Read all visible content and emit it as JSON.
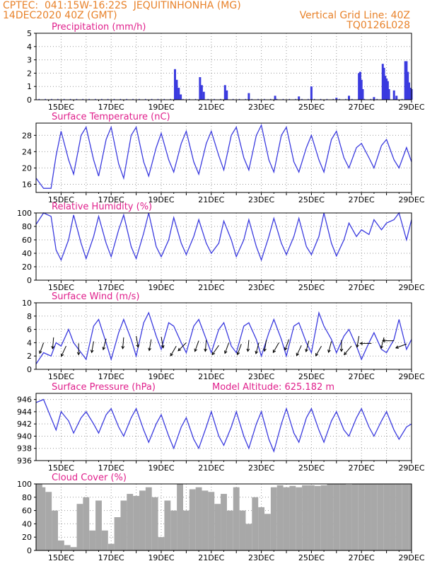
{
  "header": {
    "left_line1": "CPTEC:  041:15W-16:22S  JEQUITINHONHA (MG)",
    "left_line2": "14DEC2020 40Z (GMT)",
    "right_line1": "Vertical Grid Line: 40Z",
    "right_line2": "TQ0126L028"
  },
  "model_altitude": "Model Altitude: 625.182 m",
  "date_ticks": [
    "15DEC",
    "17DEC",
    "19DEC",
    "21DEC",
    "23DEC",
    "25DEC",
    "27DEC",
    "29DEC"
  ],
  "colors": {
    "series": "#3b3bdf",
    "title": "#e0208c",
    "cloud": "#a8a8a8",
    "header": "#e8822a"
  },
  "chart_data": [
    {
      "id": "precip",
      "type": "bar",
      "title": "Precipitation (mm/h)",
      "x_range_days": [
        14.0,
        29.0
      ],
      "ylim": [
        0,
        5
      ],
      "yticks": [
        "0",
        "1",
        "2",
        "3",
        "4",
        "5"
      ],
      "bars": [
        [
          19.55,
          2.3
        ],
        [
          19.62,
          1.5
        ],
        [
          19.7,
          0.9
        ],
        [
          19.78,
          0.4
        ],
        [
          20.55,
          1.7
        ],
        [
          20.62,
          1.1
        ],
        [
          20.7,
          0.6
        ],
        [
          21.55,
          1.1
        ],
        [
          21.62,
          0.7
        ],
        [
          22.5,
          0.5
        ],
        [
          23.55,
          0.3
        ],
        [
          24.5,
          0.25
        ],
        [
          25.0,
          1.0
        ],
        [
          26.0,
          0.15
        ],
        [
          26.5,
          0.3
        ],
        [
          26.9,
          2.0
        ],
        [
          26.95,
          2.1
        ],
        [
          27.0,
          1.5
        ],
        [
          27.05,
          0.8
        ],
        [
          27.5,
          0.2
        ],
        [
          27.85,
          2.7
        ],
        [
          27.9,
          2.4
        ],
        [
          27.95,
          1.8
        ],
        [
          28.0,
          1.6
        ],
        [
          28.05,
          1.4
        ],
        [
          28.1,
          0.8
        ],
        [
          28.3,
          0.7
        ],
        [
          28.4,
          0.3
        ],
        [
          28.75,
          2.9
        ],
        [
          28.8,
          2.9
        ],
        [
          28.85,
          2.1
        ],
        [
          28.9,
          1.3
        ],
        [
          28.95,
          0.9
        ],
        [
          29.0,
          0.8
        ]
      ]
    },
    {
      "id": "temp",
      "type": "line",
      "title": "Surface Temperature (nC)",
      "x_range_days": [
        14.0,
        29.0
      ],
      "ylim": [
        14,
        31
      ],
      "yticks": [
        "16",
        "20",
        "24",
        "28"
      ],
      "x": [
        14.0,
        14.3,
        14.6,
        14.8,
        15.0,
        15.3,
        15.5,
        15.8,
        16.0,
        16.3,
        16.5,
        16.8,
        17.0,
        17.3,
        17.5,
        17.8,
        18.0,
        18.3,
        18.5,
        18.8,
        19.0,
        19.3,
        19.5,
        19.8,
        20.0,
        20.3,
        20.5,
        20.8,
        21.0,
        21.3,
        21.5,
        21.8,
        22.0,
        22.3,
        22.5,
        22.8,
        23.0,
        23.3,
        23.5,
        23.8,
        24.0,
        24.3,
        24.5,
        24.8,
        25.0,
        25.3,
        25.5,
        25.8,
        26.0,
        26.3,
        26.5,
        26.8,
        27.0,
        27.3,
        27.5,
        27.8,
        28.0,
        28.3,
        28.5,
        28.8,
        29.0
      ],
      "y": [
        17.5,
        15,
        15,
        23,
        29,
        22,
        18.5,
        28,
        30,
        22,
        18,
        27,
        30,
        21,
        17.5,
        28,
        30,
        21.5,
        18,
        25,
        28.5,
        22,
        19,
        26,
        29,
        21.5,
        18.5,
        26,
        29,
        23,
        19.5,
        28,
        30,
        22.5,
        19.5,
        28,
        30.5,
        22,
        19,
        28,
        30,
        21.5,
        19,
        25,
        28,
        22,
        19,
        27,
        29,
        22.5,
        20,
        25,
        26,
        22.5,
        20,
        25.5,
        27,
        22,
        20,
        25,
        21.5
      ]
    },
    {
      "id": "rh",
      "type": "line",
      "title": "Relative Humidity (%)",
      "x_range_days": [
        14.0,
        29.0
      ],
      "ylim": [
        0,
        100
      ],
      "yticks": [
        "0",
        "20",
        "40",
        "60",
        "80",
        "100"
      ],
      "x": [
        14.0,
        14.3,
        14.6,
        14.8,
        15.0,
        15.3,
        15.5,
        15.8,
        16.0,
        16.3,
        16.5,
        16.8,
        17.0,
        17.3,
        17.5,
        17.8,
        18.0,
        18.3,
        18.5,
        18.8,
        19.0,
        19.3,
        19.5,
        19.8,
        20.0,
        20.3,
        20.5,
        20.8,
        21.0,
        21.3,
        21.5,
        21.8,
        22.0,
        22.3,
        22.5,
        22.8,
        23.0,
        23.3,
        23.5,
        23.8,
        24.0,
        24.3,
        24.5,
        24.8,
        25.0,
        25.3,
        25.5,
        25.8,
        26.0,
        26.3,
        26.5,
        26.8,
        27.0,
        27.3,
        27.5,
        27.8,
        28.0,
        28.3,
        28.5,
        28.8,
        29.0
      ],
      "y": [
        83,
        100,
        95,
        45,
        30,
        60,
        97,
        55,
        32,
        65,
        95,
        55,
        35,
        75,
        97,
        50,
        32,
        70,
        100,
        50,
        35,
        60,
        93,
        55,
        38,
        65,
        90,
        55,
        40,
        55,
        88,
        60,
        35,
        60,
        90,
        50,
        30,
        65,
        92,
        55,
        38,
        65,
        92,
        50,
        38,
        65,
        100,
        55,
        36,
        60,
        85,
        65,
        75,
        68,
        90,
        75,
        85,
        90,
        100,
        60,
        90
      ]
    },
    {
      "id": "wind",
      "type": "line",
      "title": "Surface Wind (m/s)",
      "x_range_days": [
        14.0,
        29.0
      ],
      "ylim": [
        0,
        10
      ],
      "yticks": [
        "0",
        "2",
        "4",
        "6",
        "8",
        "10"
      ],
      "x": [
        14.0,
        14.3,
        14.6,
        14.8,
        15.0,
        15.3,
        15.5,
        15.8,
        16.0,
        16.3,
        16.5,
        16.8,
        17.0,
        17.3,
        17.5,
        17.8,
        18.0,
        18.3,
        18.5,
        18.8,
        19.0,
        19.3,
        19.5,
        19.8,
        20.0,
        20.3,
        20.5,
        20.8,
        21.0,
        21.3,
        21.5,
        21.8,
        22.0,
        22.3,
        22.5,
        22.8,
        23.0,
        23.3,
        23.5,
        23.8,
        24.0,
        24.3,
        24.5,
        24.8,
        25.0,
        25.3,
        25.5,
        25.8,
        26.0,
        26.3,
        26.5,
        26.8,
        27.0,
        27.3,
        27.5,
        27.8,
        28.0,
        28.3,
        28.5,
        28.8,
        29.0
      ],
      "y": [
        0.8,
        2.5,
        2,
        4,
        3.5,
        6,
        4,
        2.5,
        1.5,
        6.5,
        7.5,
        4,
        1.5,
        5.5,
        7.5,
        4.5,
        2,
        7,
        8.5,
        5,
        3,
        7,
        6.5,
        4,
        2.5,
        6.5,
        7.5,
        4.5,
        2.5,
        6,
        7,
        3.5,
        2.5,
        6.5,
        7,
        4.5,
        2,
        5.5,
        7.5,
        4.5,
        2,
        6.5,
        7,
        4,
        2.5,
        8.5,
        6.5,
        4.5,
        2.5,
        5,
        6,
        3.5,
        1.5,
        4,
        5.5,
        3,
        2.5,
        4.5,
        7.5,
        3,
        4.5
      ],
      "vectors": [
        [
          14.3,
          4.0,
          250
        ],
        [
          14.7,
          4.8,
          265
        ],
        [
          15.2,
          3.5,
          245
        ],
        [
          15.7,
          3.9,
          270
        ],
        [
          16.3,
          4.2,
          260
        ],
        [
          16.8,
          4.6,
          255
        ],
        [
          17.5,
          4.8,
          265
        ],
        [
          18.0,
          5.0,
          280
        ],
        [
          18.6,
          4.5,
          260
        ],
        [
          19.0,
          4.9,
          280
        ],
        [
          19.6,
          3.5,
          240
        ],
        [
          20.0,
          4.0,
          225
        ],
        [
          20.5,
          4.3,
          250
        ],
        [
          20.8,
          4.4,
          265
        ],
        [
          21.3,
          3.6,
          235
        ],
        [
          21.7,
          4.0,
          250
        ],
        [
          22.2,
          3.8,
          250
        ],
        [
          22.5,
          4.4,
          265
        ],
        [
          22.9,
          4.0,
          255
        ],
        [
          23.2,
          4.4,
          260
        ],
        [
          23.7,
          4.0,
          240
        ],
        [
          24.1,
          4.5,
          250
        ],
        [
          24.6,
          3.6,
          245
        ],
        [
          24.9,
          4.3,
          255
        ],
        [
          25.4,
          3.5,
          240
        ],
        [
          25.8,
          4.2,
          255
        ],
        [
          26.2,
          4.4,
          270
        ],
        [
          26.6,
          3.5,
          230
        ],
        [
          26.9,
          5.0,
          260
        ],
        [
          27.4,
          3.9,
          180
        ],
        [
          27.9,
          4.8,
          255
        ],
        [
          28.3,
          4.3,
          180
        ],
        [
          28.8,
          3.8,
          200
        ]
      ]
    },
    {
      "id": "press",
      "type": "line",
      "title": "Surface Pressure (hPa)",
      "x_range_days": [
        14.0,
        29.0
      ],
      "ylim": [
        936,
        947
      ],
      "yticks": [
        "936",
        "938",
        "940",
        "942",
        "944",
        "946"
      ],
      "x": [
        14.0,
        14.3,
        14.6,
        14.8,
        15.0,
        15.3,
        15.5,
        15.8,
        16.0,
        16.3,
        16.5,
        16.8,
        17.0,
        17.3,
        17.5,
        17.8,
        18.0,
        18.3,
        18.5,
        18.8,
        19.0,
        19.3,
        19.5,
        19.8,
        20.0,
        20.3,
        20.5,
        20.8,
        21.0,
        21.3,
        21.5,
        21.8,
        22.0,
        22.3,
        22.5,
        22.8,
        23.0,
        23.3,
        23.5,
        23.8,
        24.0,
        24.3,
        24.5,
        24.8,
        25.0,
        25.3,
        25.5,
        25.8,
        26.0,
        26.3,
        26.5,
        26.8,
        27.0,
        27.3,
        27.5,
        27.8,
        28.0,
        28.3,
        28.5,
        28.8,
        29.0
      ],
      "y": [
        945.5,
        946,
        943,
        941,
        944,
        942.5,
        940.5,
        943,
        944,
        942,
        940.5,
        943.5,
        944.5,
        941.5,
        940,
        943,
        944.5,
        941,
        939,
        942,
        943.5,
        940,
        938,
        941.5,
        943,
        939.5,
        938,
        941.5,
        944,
        940,
        938.5,
        941.5,
        944,
        940,
        938,
        942,
        944,
        939.5,
        937.5,
        942,
        944.5,
        940.5,
        939,
        943,
        944.5,
        941,
        939,
        942.5,
        944,
        941,
        940,
        943,
        944.5,
        941.5,
        940,
        942.5,
        944,
        941,
        939.5,
        941.5,
        942
      ]
    },
    {
      "id": "cloud",
      "type": "bar",
      "title": "Cloud Cover (%)",
      "x_range_days": [
        14.0,
        29.0
      ],
      "ylim": [
        0,
        100
      ],
      "yticks": [
        "0",
        "20",
        "40",
        "60",
        "80",
        "100"
      ],
      "x": [
        14.0,
        14.25,
        14.5,
        14.75,
        15.0,
        15.25,
        15.5,
        15.75,
        16.0,
        16.25,
        16.5,
        16.75,
        17.0,
        17.25,
        17.5,
        17.75,
        18.0,
        18.25,
        18.5,
        18.75,
        19.0,
        19.25,
        19.5,
        19.75,
        20.0,
        20.25,
        20.5,
        20.75,
        21.0,
        21.25,
        21.5,
        21.75,
        22.0,
        22.25,
        22.5,
        22.75,
        23.0,
        23.25,
        23.5,
        23.75,
        24.0,
        24.25,
        24.5,
        24.75,
        25.0,
        25.25,
        25.5,
        25.75,
        26.0,
        26.25,
        26.5,
        26.75,
        27.0,
        27.25,
        27.5,
        27.75,
        28.0,
        28.25,
        28.5,
        28.75,
        29.0
      ],
      "values": [
        100,
        95,
        88,
        60,
        15,
        8,
        5,
        70,
        80,
        30,
        75,
        30,
        10,
        50,
        75,
        85,
        82,
        90,
        95,
        80,
        20,
        75,
        60,
        100,
        60,
        92,
        95,
        90,
        88,
        70,
        85,
        60,
        95,
        60,
        40,
        80,
        65,
        55,
        95,
        98,
        95,
        97,
        95,
        98,
        98,
        97,
        98,
        100,
        100,
        100,
        99,
        100,
        100,
        100,
        100,
        100,
        100,
        100,
        100,
        100,
        100
      ]
    }
  ]
}
